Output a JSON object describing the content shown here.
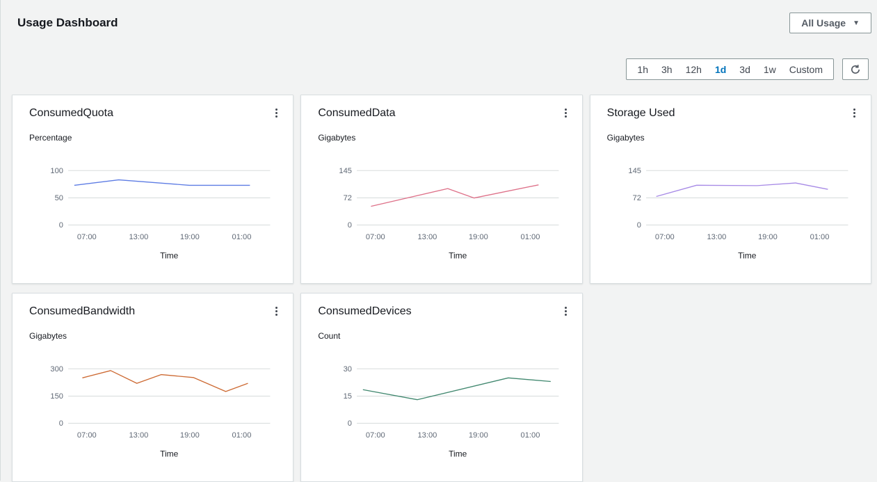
{
  "header": {
    "title": "Usage Dashboard",
    "dropdown_label": "All Usage",
    "dropdown_caret": "▼"
  },
  "toolbar": {
    "ranges": [
      "1h",
      "3h",
      "12h",
      "1d",
      "3d",
      "1w",
      "Custom"
    ],
    "selected_range": "1d",
    "selected_color": "#0073bb",
    "refresh_icon": "refresh"
  },
  "cards": [
    {
      "title": "ConsumedQuota",
      "unit": "Percentage",
      "menu_icon": "vertical-ellipsis"
    },
    {
      "title": "ConsumedData",
      "unit": "Gigabytes",
      "menu_icon": "vertical-ellipsis"
    },
    {
      "title": "Storage Used",
      "unit": "Gigabytes",
      "menu_icon": "vertical-ellipsis"
    },
    {
      "title": "ConsumedBandwidth",
      "unit": "Gigabytes",
      "menu_icon": "vertical-ellipsis"
    },
    {
      "title": "ConsumedDevices",
      "unit": "Count",
      "menu_icon": "vertical-ellipsis"
    }
  ],
  "chart_data": [
    {
      "type": "line",
      "title": "ConsumedQuota",
      "ylabel": "Percentage",
      "xlabel": "Time",
      "yticks": [
        100,
        50,
        0
      ],
      "ylim": [
        0,
        100
      ],
      "xtick_labels": [
        "07:00",
        "13:00",
        "19:00",
        "01:00"
      ],
      "xtick_pos": [
        0.092,
        0.349,
        0.602,
        0.859
      ],
      "color": "#5d7ce4",
      "points": [
        [
          0.03,
          73
        ],
        [
          0.25,
          83
        ],
        [
          0.6,
          73
        ],
        [
          0.75,
          73
        ],
        [
          0.9,
          73
        ]
      ]
    },
    {
      "type": "line",
      "title": "ConsumedData",
      "ylabel": "Gigabytes",
      "xlabel": "Time",
      "yticks": [
        145,
        72,
        0
      ],
      "ylim": [
        0,
        145
      ],
      "xtick_labels": [
        "07:00",
        "13:00",
        "19:00",
        "01:00"
      ],
      "xtick_pos": [
        0.092,
        0.349,
        0.602,
        0.859
      ],
      "color": "#de7189",
      "points": [
        [
          0.07,
          50
        ],
        [
          0.45,
          97
        ],
        [
          0.58,
          72
        ],
        [
          0.9,
          107
        ]
      ]
    },
    {
      "type": "line",
      "title": "Storage Used",
      "ylabel": "Gigabytes",
      "xlabel": "Time",
      "yticks": [
        145,
        72,
        0
      ],
      "ylim": [
        0,
        145
      ],
      "xtick_labels": [
        "07:00",
        "13:00",
        "19:00",
        "01:00"
      ],
      "xtick_pos": [
        0.092,
        0.349,
        0.602,
        0.859
      ],
      "color": "#a78ae6",
      "points": [
        [
          0.05,
          76
        ],
        [
          0.25,
          106
        ],
        [
          0.55,
          105
        ],
        [
          0.74,
          112
        ],
        [
          0.9,
          95
        ]
      ]
    },
    {
      "type": "line",
      "title": "ConsumedBandwidth",
      "ylabel": "Gigabytes",
      "xlabel": "Time",
      "yticks": [
        300,
        150,
        0
      ],
      "ylim": [
        0,
        300
      ],
      "xtick_labels": [
        "07:00",
        "13:00",
        "19:00",
        "01:00"
      ],
      "xtick_pos": [
        0.092,
        0.349,
        0.602,
        0.859
      ],
      "color": "#cd6a33",
      "points": [
        [
          0.07,
          250
        ],
        [
          0.21,
          290
        ],
        [
          0.34,
          220
        ],
        [
          0.46,
          268
        ],
        [
          0.62,
          252
        ],
        [
          0.78,
          175
        ],
        [
          0.89,
          220
        ]
      ]
    },
    {
      "type": "line",
      "title": "ConsumedDevices",
      "ylabel": "Count",
      "xlabel": "Time",
      "yticks": [
        30,
        15,
        0
      ],
      "ylim": [
        0,
        30
      ],
      "xtick_labels": [
        "07:00",
        "13:00",
        "19:00",
        "01:00"
      ],
      "xtick_pos": [
        0.092,
        0.349,
        0.602,
        0.859
      ],
      "color": "#41886f",
      "points": [
        [
          0.03,
          18.5
        ],
        [
          0.3,
          13
        ],
        [
          0.75,
          25
        ],
        [
          0.96,
          23
        ]
      ]
    }
  ],
  "chart_style": {
    "grid_color": "#d1d6d6",
    "tick_label_color": "#5f6875",
    "axis_label_color": "#16191f"
  }
}
